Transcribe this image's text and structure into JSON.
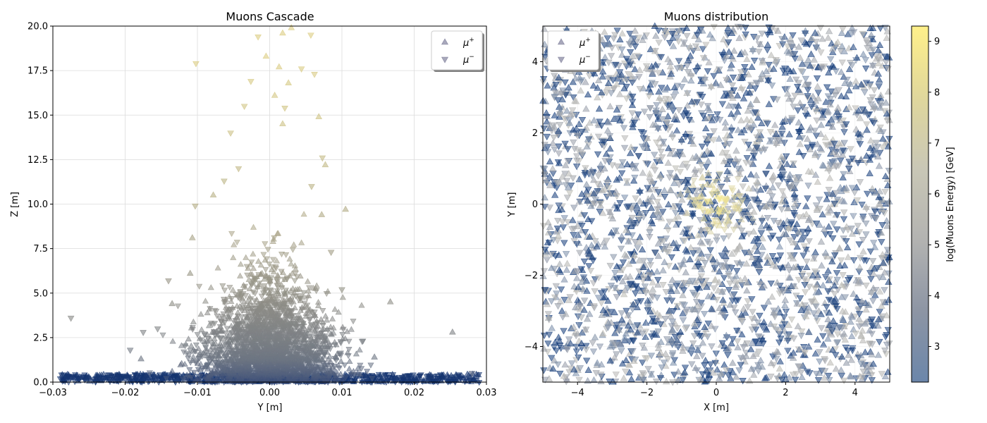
{
  "chart_data": [
    {
      "type": "scatter",
      "title": "Muons Cascade",
      "xlabel": "Y [m]",
      "ylabel": "Z [m]",
      "xlim": [
        -0.03,
        0.03
      ],
      "ylim": [
        0,
        20
      ],
      "xticks": [
        "−0.03",
        "−0.02",
        "−0.01",
        "0.00",
        "0.01",
        "0.02",
        "0.03"
      ],
      "yticks": [
        "0.0",
        "2.5",
        "5.0",
        "7.5",
        "10.0",
        "12.5",
        "15.0",
        "17.5",
        "20.0"
      ],
      "grid": true,
      "legend_position": "top-right",
      "series": [
        {
          "name": "μ+",
          "marker": "triangle-up"
        },
        {
          "name": "μ−",
          "marker": "triangle-down"
        }
      ],
      "points": [
        {
          "x": 0.003,
          "y": 19.9,
          "s": 0
        },
        {
          "x": 0.0018,
          "y": 19.6,
          "s": 0
        },
        {
          "x": 0.0057,
          "y": 19.5,
          "s": 1
        },
        {
          "x": -0.0016,
          "y": 19.4,
          "s": 1
        },
        {
          "x": -0.0102,
          "y": 17.9,
          "s": 1
        },
        {
          "x": -0.0005,
          "y": 18.3,
          "s": 0
        },
        {
          "x": 0.0013,
          "y": 17.7,
          "s": 0
        },
        {
          "x": 0.0044,
          "y": 17.6,
          "s": 1
        },
        {
          "x": 0.0062,
          "y": 17.3,
          "s": 1
        },
        {
          "x": -0.0026,
          "y": 16.9,
          "s": 1
        },
        {
          "x": 0.0026,
          "y": 16.8,
          "s": 0
        },
        {
          "x": 0.0007,
          "y": 16.1,
          "s": 0
        },
        {
          "x": -0.0035,
          "y": 15.5,
          "s": 1
        },
        {
          "x": 0.0021,
          "y": 15.4,
          "s": 1
        },
        {
          "x": 0.0068,
          "y": 14.9,
          "s": 0
        },
        {
          "x": -0.0054,
          "y": 14.0,
          "s": 1
        },
        {
          "x": 0.0018,
          "y": 14.5,
          "s": 0
        },
        {
          "x": 0.0073,
          "y": 12.6,
          "s": 1
        },
        {
          "x": -0.0078,
          "y": 10.5,
          "s": 0
        },
        {
          "x": 0.0105,
          "y": 9.7,
          "s": 0
        },
        {
          "x": -0.0103,
          "y": 9.9,
          "s": 1
        },
        {
          "x": -0.0107,
          "y": 8.1,
          "s": 0
        },
        {
          "x": 0.0072,
          "y": 9.4,
          "s": 0
        },
        {
          "x": 0.0058,
          "y": 11.0,
          "s": 1
        },
        {
          "x": -0.0043,
          "y": 12.0,
          "s": 1
        },
        {
          "x": -0.0063,
          "y": 11.3,
          "s": 1
        },
        {
          "x": 0.0077,
          "y": 12.2,
          "s": 0
        },
        {
          "x": -0.014,
          "y": 5.7,
          "s": 1
        },
        {
          "x": -0.0135,
          "y": 4.4,
          "s": 0
        },
        {
          "x": -0.0155,
          "y": 3.0,
          "s": 1
        },
        {
          "x": -0.0175,
          "y": 2.8,
          "s": 1
        },
        {
          "x": -0.0193,
          "y": 1.8,
          "s": 1
        },
        {
          "x": -0.0178,
          "y": 1.3,
          "s": 0
        },
        {
          "x": -0.0275,
          "y": 3.6,
          "s": 1
        },
        {
          "x": 0.0167,
          "y": 4.5,
          "s": 0
        },
        {
          "x": 0.0253,
          "y": 2.8,
          "s": 0
        },
        {
          "x": 0.01,
          "y": 5.2,
          "s": 1
        },
        {
          "x": 0.0128,
          "y": 2.3,
          "s": 1
        },
        {
          "x": 0.0145,
          "y": 1.4,
          "s": 0
        },
        {
          "x": 0.028,
          "y": 0.5,
          "s": 1
        },
        {
          "x": -0.011,
          "y": 6.1,
          "s": 0
        },
        {
          "x": 0.0085,
          "y": 7.3,
          "s": 1
        }
      ],
      "core": {
        "count": 2600,
        "x_sd": 0.0042,
        "z_sd": 2.6,
        "x_scale_per_z": 0.00022
      },
      "base": {
        "count": 750,
        "z_max": 0.45
      },
      "colormap": [
        "#0b2e6e",
        "#3a4d78",
        "#6e7683",
        "#8a8a86",
        "#a49f86",
        "#c4bb86",
        "#dccd82"
      ]
    },
    {
      "type": "scatter",
      "title": "Muons distribution",
      "xlabel": "X [m]",
      "ylabel": "Y [m]",
      "xlim": [
        -5,
        5
      ],
      "ylim": [
        -5,
        5
      ],
      "xticks": [
        "−4",
        "−2",
        "0",
        "2",
        "4"
      ],
      "yticks": [
        "−4",
        "−2",
        "0",
        "2",
        "4"
      ],
      "grid": true,
      "legend_position": "top-left",
      "series": [
        {
          "name": "μ+",
          "marker": "triangle-up"
        },
        {
          "name": "μ−",
          "marker": "triangle-down"
        }
      ],
      "uniform": {
        "count": 3000
      },
      "central": {
        "count": 80,
        "sd": 0.45
      },
      "colorbar": {
        "label": "log(Muons Energy) [GeV]",
        "range": [
          2.3,
          9.3
        ],
        "ticks": [
          "3",
          "4",
          "5",
          "6",
          "7",
          "8",
          "9"
        ],
        "tick_values": [
          3,
          4,
          5,
          6,
          7,
          8,
          9
        ],
        "colors": [
          "#6b86aa",
          "#8d95a4",
          "#b3b3b1",
          "#c9c7b6",
          "#e0d79c",
          "#fff08a"
        ]
      }
    }
  ]
}
